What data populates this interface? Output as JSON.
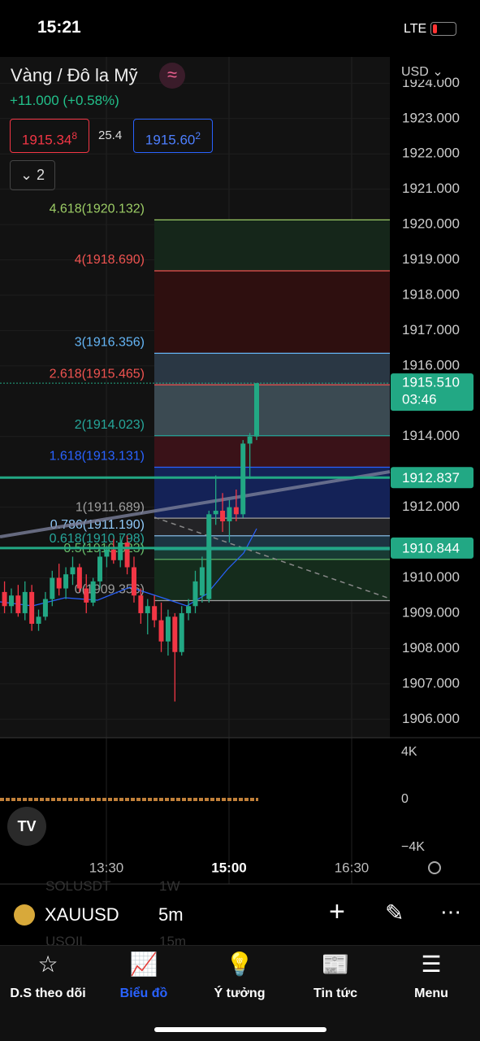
{
  "status": {
    "time": "15:21",
    "network": "LTE"
  },
  "header": {
    "title": "Vàng / Đô la Mỹ",
    "change": "+11.000 (+0.58%)",
    "bid": "1915.34",
    "bid_small": "8",
    "spread": "25.4",
    "ask": "1915.60",
    "ask_small": "2",
    "indicators": "2",
    "currency": "USD"
  },
  "chart_data": {
    "type": "candlestick",
    "ylim": [
      1905.5,
      1924.1
    ],
    "yticks": [
      {
        "value": 1924,
        "label": "1924.000"
      },
      {
        "value": 1923,
        "label": "1923.000"
      },
      {
        "value": 1922,
        "label": "1922.000"
      },
      {
        "value": 1921,
        "label": "1921.000"
      },
      {
        "value": 1920,
        "label": "1920.000"
      },
      {
        "value": 1919,
        "label": "1919.000"
      },
      {
        "value": 1918,
        "label": "1918.000"
      },
      {
        "value": 1917,
        "label": "1917.000"
      },
      {
        "value": 1916,
        "label": "1916.000"
      },
      {
        "value": 1914,
        "label": "1914.000"
      },
      {
        "value": 1912,
        "label": "1912.000"
      },
      {
        "value": 1910,
        "label": "1910.000"
      },
      {
        "value": 1909,
        "label": "1909.000"
      },
      {
        "value": 1908,
        "label": "1908.000"
      },
      {
        "value": 1907,
        "label": "1907.000"
      },
      {
        "value": 1906,
        "label": "1906.000"
      }
    ],
    "up_color": "#22a884",
    "down_color": "#f23645",
    "candles": [
      {
        "o": 1909.6,
        "h": 1909.9,
        "l": 1909.0,
        "c": 1909.2
      },
      {
        "o": 1909.2,
        "h": 1909.7,
        "l": 1909.0,
        "c": 1909.5
      },
      {
        "o": 1909.5,
        "h": 1909.8,
        "l": 1908.9,
        "c": 1909.0
      },
      {
        "o": 1909.0,
        "h": 1909.9,
        "l": 1908.8,
        "c": 1909.6
      },
      {
        "o": 1909.6,
        "h": 1909.8,
        "l": 1908.5,
        "c": 1908.7
      },
      {
        "o": 1908.7,
        "h": 1909.1,
        "l": 1908.5,
        "c": 1908.9
      },
      {
        "o": 1908.9,
        "h": 1909.6,
        "l": 1908.8,
        "c": 1909.4
      },
      {
        "o": 1909.4,
        "h": 1910.2,
        "l": 1909.2,
        "c": 1910.0
      },
      {
        "o": 1910.0,
        "h": 1910.4,
        "l": 1909.5,
        "c": 1909.7
      },
      {
        "o": 1909.7,
        "h": 1910.3,
        "l": 1909.4,
        "c": 1910.1
      },
      {
        "o": 1910.1,
        "h": 1910.6,
        "l": 1909.8,
        "c": 1910.3
      },
      {
        "o": 1910.3,
        "h": 1910.4,
        "l": 1909.6,
        "c": 1909.7
      },
      {
        "o": 1909.7,
        "h": 1910.1,
        "l": 1909.0,
        "c": 1909.3
      },
      {
        "o": 1909.3,
        "h": 1910.0,
        "l": 1909.2,
        "c": 1909.9
      },
      {
        "o": 1909.9,
        "h": 1910.8,
        "l": 1909.7,
        "c": 1910.6
      },
      {
        "o": 1910.6,
        "h": 1910.9,
        "l": 1910.3,
        "c": 1910.8
      },
      {
        "o": 1910.8,
        "h": 1911.1,
        "l": 1910.4,
        "c": 1910.5
      },
      {
        "o": 1910.5,
        "h": 1911.2,
        "l": 1910.3,
        "c": 1911.0
      },
      {
        "o": 1911.0,
        "h": 1911.2,
        "l": 1910.1,
        "c": 1910.3
      },
      {
        "o": 1910.3,
        "h": 1910.6,
        "l": 1909.3,
        "c": 1909.5
      },
      {
        "o": 1909.5,
        "h": 1909.7,
        "l": 1908.7,
        "c": 1909.0
      },
      {
        "o": 1909.0,
        "h": 1909.4,
        "l": 1908.4,
        "c": 1909.2
      },
      {
        "o": 1909.2,
        "h": 1909.5,
        "l": 1908.6,
        "c": 1908.8
      },
      {
        "o": 1908.8,
        "h": 1909.3,
        "l": 1907.9,
        "c": 1908.2
      },
      {
        "o": 1908.2,
        "h": 1909.1,
        "l": 1907.8,
        "c": 1908.9
      },
      {
        "o": 1908.9,
        "h": 1909.0,
        "l": 1906.5,
        "c": 1907.9
      },
      {
        "o": 1907.9,
        "h": 1909.2,
        "l": 1907.8,
        "c": 1909.0
      },
      {
        "o": 1909.0,
        "h": 1909.4,
        "l": 1908.8,
        "c": 1909.2
      },
      {
        "o": 1909.2,
        "h": 1910.2,
        "l": 1909.0,
        "c": 1909.9
      },
      {
        "o": 1909.5,
        "h": 1910.6,
        "l": 1909.3,
        "c": 1910.3
      },
      {
        "o": 1909.4,
        "h": 1911.9,
        "l": 1909.3,
        "c": 1911.8
      },
      {
        "o": 1911.8,
        "h": 1912.9,
        "l": 1911.5,
        "c": 1911.9
      },
      {
        "o": 1911.9,
        "h": 1912.4,
        "l": 1911.3,
        "c": 1911.6
      },
      {
        "o": 1911.6,
        "h": 1912.2,
        "l": 1911.0,
        "c": 1912.0
      },
      {
        "o": 1912.0,
        "h": 1912.5,
        "l": 1911.6,
        "c": 1911.8
      },
      {
        "o": 1911.8,
        "h": 1913.9,
        "l": 1911.7,
        "c": 1913.8
      },
      {
        "o": 1913.8,
        "h": 1914.1,
        "l": 1912.8,
        "c": 1914.0
      },
      {
        "o": 1914.0,
        "h": 1915.51,
        "l": 1913.9,
        "c": 1915.51
      }
    ],
    "fib_levels": [
      {
        "label": "4.618(1920.132)",
        "price": 1920.132,
        "color": "#9ccc65",
        "fill": "#15261a"
      },
      {
        "label": "4(1918.690)",
        "price": 1918.69,
        "color": "#ef5350",
        "fill": "#2e0f0f"
      },
      {
        "label": "3(1916.356)",
        "price": 1916.356,
        "color": "#64b5f6",
        "fill": "#2a3744"
      },
      {
        "label": "2.618(1915.465)",
        "price": 1915.465,
        "color": "#ef5350",
        "fill": "#3b4a52"
      },
      {
        "label": "2(1914.023)",
        "price": 1914.023,
        "color": "#26a69a",
        "fill": "#3a1218"
      },
      {
        "label": "1.618(1913.131)",
        "price": 1913.131,
        "color": "#2962ff",
        "fill": "#142257"
      },
      {
        "label": "1(1911.689)",
        "price": 1911.689,
        "color": "#9e9e9e",
        "fill": "#232326"
      },
      {
        "label": "0.786(1911.190)",
        "price": 1911.19,
        "color": "#90caf9",
        "fill": "#1c3442"
      },
      {
        "label": "0.618(1910.798)",
        "price": 1910.798,
        "color": "#26a69a",
        "fill": "#183a33"
      },
      {
        "label": "0.5(1910.523)",
        "price": 1910.523,
        "color": "#66bb6a",
        "fill": "#152c1c"
      },
      {
        "label": "0(1909.356)",
        "price": 1909.356,
        "color": "#9e9e9e"
      }
    ],
    "price_lines": [
      {
        "price": 1912.837,
        "label": "1912.837",
        "color": "#22a884"
      },
      {
        "price": 1910.844,
        "label": "1910.844",
        "color": "#22a884"
      }
    ],
    "last_price": {
      "price": 1915.51,
      "label": "1915.510",
      "countdown": "03:46",
      "color": "#22a884"
    },
    "xticks": [
      "13:30",
      "15:00",
      "16:30"
    ],
    "volume_ticks": [
      "4K",
      "0",
      "−4K"
    ]
  },
  "toolbar": {
    "symbol": "XAUUSD",
    "interval": "5m",
    "faded": [
      "SOLUSDT",
      "1W",
      "USOIL",
      "15m"
    ]
  },
  "nav": [
    "D.S theo dõi",
    "Biểu đồ",
    "Ý tưởng",
    "Tin tức",
    "Menu"
  ]
}
